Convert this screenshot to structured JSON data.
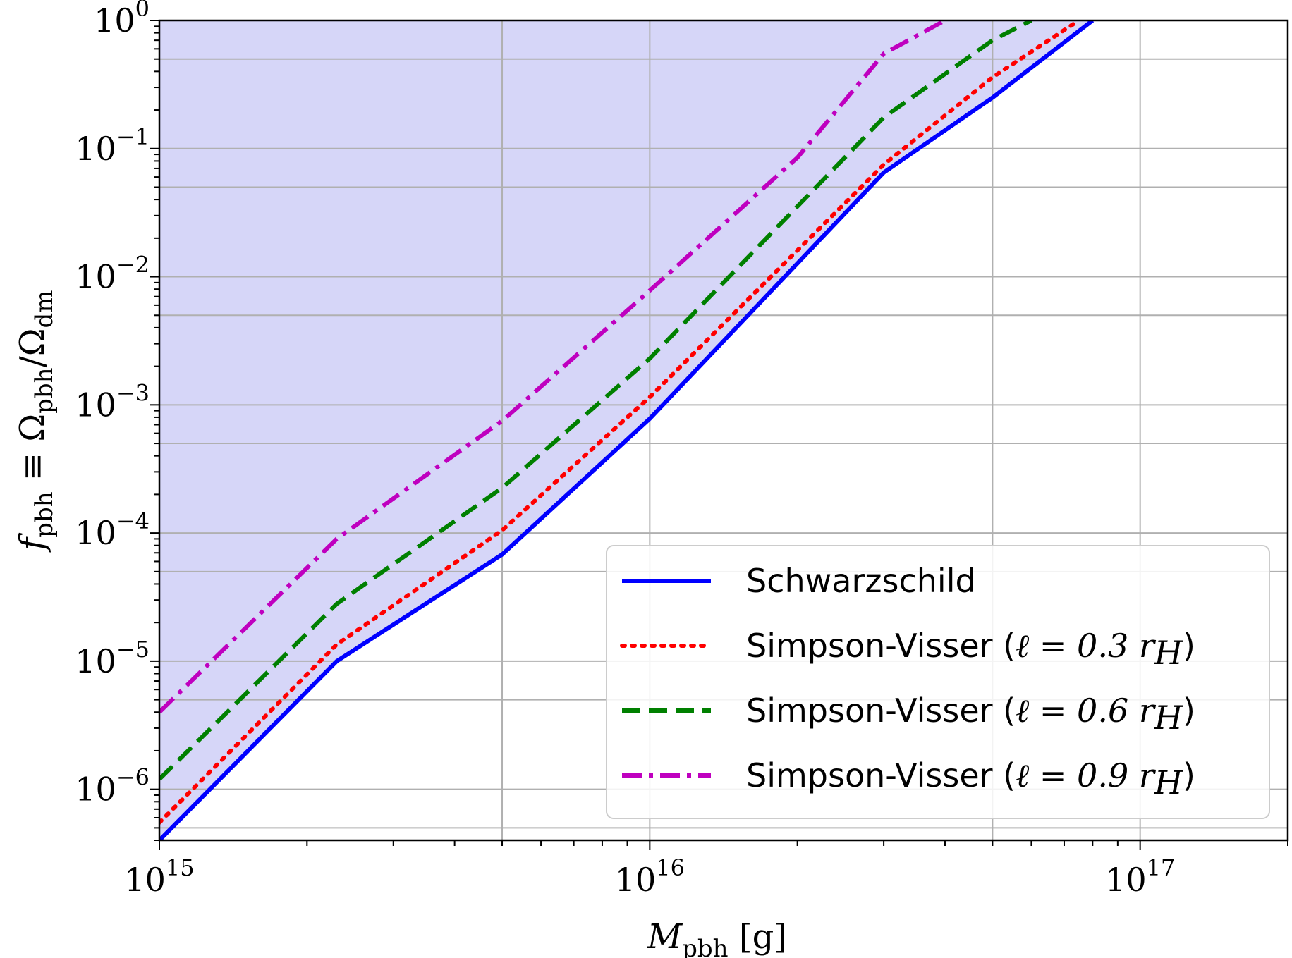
{
  "chart_data": {
    "type": "line",
    "xscale": "log",
    "yscale": "log",
    "xlim": [
      1000000000000000.0,
      2e+17
    ],
    "ylim": [
      4e-07,
      1
    ],
    "grid": true,
    "legend_position": "lower-right",
    "xlabel": {
      "main": "M",
      "sub": "pbh",
      "unit": " [g]"
    },
    "ylabel": {
      "main": "f",
      "sub": "pbh",
      "eq": " ≡ Ω",
      "sub2": "pbh",
      "div": "/Ω",
      "sub3": "dm"
    },
    "x_ticks": [
      {
        "value": 1000000000000000.0,
        "base": "10",
        "exp": "15"
      },
      {
        "value": 1e+16,
        "base": "10",
        "exp": "16"
      },
      {
        "value": 1e+17,
        "base": "10",
        "exp": "17"
      }
    ],
    "y_ticks": [
      {
        "value": 1,
        "base": "10",
        "exp": "0"
      },
      {
        "value": 0.1,
        "base": "10",
        "exp": "−1"
      },
      {
        "value": 0.01,
        "base": "10",
        "exp": "−2"
      },
      {
        "value": 0.001,
        "base": "10",
        "exp": "−3"
      },
      {
        "value": 0.0001,
        "base": "10",
        "exp": "−4"
      },
      {
        "value": 1e-05,
        "base": "10",
        "exp": "−5"
      },
      {
        "value": 1e-06,
        "base": "10",
        "exp": "−6"
      }
    ],
    "series": [
      {
        "name": "Schwarzschild",
        "name_suffix": "",
        "color": "#0000ff",
        "fill": "#d6d6f8",
        "dash": "solid",
        "x": [
          1000000000000000.0,
          2300000000000000.0,
          5000000000000000.0,
          1e+16,
          3e+16,
          5e+16,
          8e+16
        ],
        "y": [
          4e-07,
          1e-05,
          6.8e-05,
          0.00078,
          0.065,
          0.25,
          1.0
        ]
      },
      {
        "name": "Simpson-Visser (",
        "name_suffix": ")",
        "math": "ℓ = 0.3 r",
        "math_sub": "H",
        "color": "#ff0000",
        "fill": "#e6b3cc",
        "dash": "dotted",
        "x": [
          1000000000000000.0,
          2300000000000000.0,
          5000000000000000.0,
          1e+16,
          3e+16,
          5e+16,
          7.5e+16
        ],
        "y": [
          5.5e-07,
          1.35e-05,
          0.000105,
          0.00115,
          0.075,
          0.36,
          1.0
        ]
      },
      {
        "name": "Simpson-Visser (",
        "name_suffix": ")",
        "math": "ℓ = 0.6 r",
        "math_sub": "H",
        "color": "#008000",
        "fill": "#a8a096",
        "dash": "dashed",
        "x": [
          1000000000000000.0,
          2300000000000000.0,
          5000000000000000.0,
          1e+16,
          3e+16,
          5e+16,
          6e+16
        ],
        "y": [
          1.2e-06,
          2.8e-05,
          0.000225,
          0.0023,
          0.175,
          0.7,
          1.0
        ]
      },
      {
        "name": "Simpson-Visser (",
        "name_suffix": ")",
        "math": "ℓ = 0.9 r",
        "math_sub": "H",
        "color": "#bf00bf",
        "fill": "#ad72a2",
        "dash": "dashdot",
        "x": [
          1000000000000000.0,
          2300000000000000.0,
          5000000000000000.0,
          1e+16,
          2e+16,
          3e+16,
          4e+16
        ],
        "y": [
          4e-06,
          9e-05,
          0.00075,
          0.0078,
          0.085,
          0.55,
          1.0
        ]
      }
    ]
  }
}
